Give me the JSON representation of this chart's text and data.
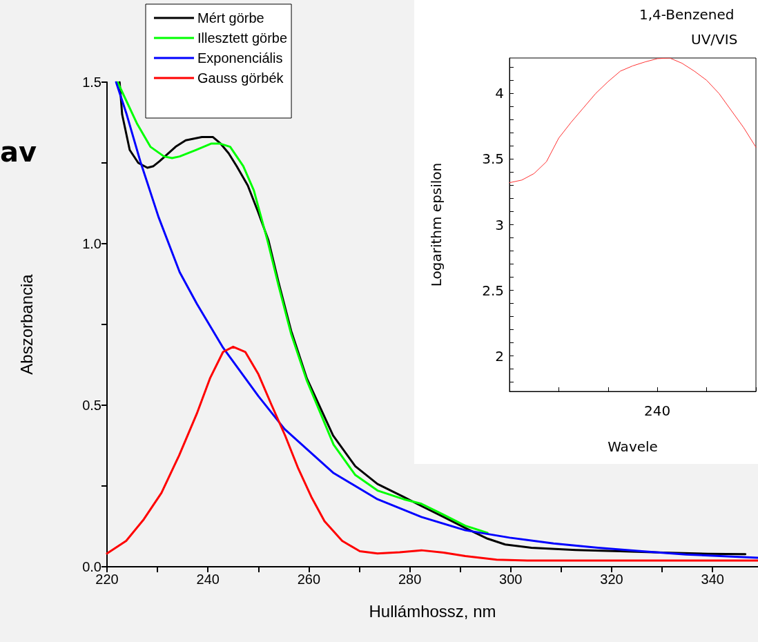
{
  "chart_data": [
    {
      "type": "line",
      "xlabel": "Hullámhossz, nm",
      "ylabel": "Abszorbancia",
      "annotations": [
        "av"
      ],
      "legend": "top",
      "marker": "none",
      "xlim": [
        220,
        349
      ],
      "xticks": [
        220,
        {
          "value": 230,
          "label": null
        },
        240,
        {
          "value": 250,
          "label": null
        },
        260,
        {
          "value": 270,
          "label": null
        },
        280,
        {
          "value": 290,
          "label": null
        },
        300,
        {
          "value": 310,
          "label": null
        },
        320,
        {
          "value": 330,
          "label": null
        },
        340
      ],
      "ylim": [
        0,
        1.5
      ],
      "yticks": [
        {
          "value": 0,
          "label": "0.0"
        },
        {
          "value": 0.25,
          "label": null
        },
        0.5,
        {
          "value": 0.75,
          "label": null
        },
        {
          "value": 1,
          "label": "1.0"
        },
        {
          "value": 1.25,
          "label": null
        },
        1.5
      ],
      "series": [
        {
          "name": "Mért görbe",
          "color": "#000000",
          "x": [
            222.5,
            223.0,
            224.5,
            226.2,
            228.0,
            229.2,
            230.4,
            233.6,
            235.6,
            238.8,
            241.0,
            242.5,
            244.1,
            245.7,
            247.9,
            249.9,
            252.0,
            254.0,
            256.5,
            259.6,
            264.8,
            269.2,
            273.6,
            278.8,
            282.3,
            286.7,
            291.0,
            295.4,
            298.9,
            304.1,
            312.9,
            321.6,
            330.3,
            339.1,
            346.5
          ],
          "values": [
            1.5,
            1.4,
            1.29,
            1.25,
            1.235,
            1.24,
            1.255,
            1.3,
            1.32,
            1.33,
            1.33,
            1.31,
            1.28,
            1.24,
            1.18,
            1.1,
            1.01,
            0.88,
            0.73,
            0.583,
            0.406,
            0.311,
            0.256,
            0.216,
            0.188,
            0.154,
            0.12,
            0.087,
            0.069,
            0.059,
            0.052,
            0.048,
            0.044,
            0.04,
            0.039
          ]
        },
        {
          "name": "Illesztett görbe",
          "color": "#00ff00",
          "x": [
            222.1,
            226.0,
            228.6,
            231.3,
            232.9,
            234.4,
            237.6,
            240.7,
            242.3,
            244.4,
            247.0,
            249.1,
            251.8,
            254.0,
            256.5,
            259.6,
            264.9,
            269.2,
            273.6,
            278.8,
            282.3,
            286.7,
            291.0,
            295.4
          ],
          "values": [
            1.5,
            1.37,
            1.3,
            1.27,
            1.265,
            1.27,
            1.29,
            1.31,
            1.31,
            1.3,
            1.24,
            1.165,
            1.01,
            0.87,
            0.72,
            0.576,
            0.378,
            0.284,
            0.236,
            0.209,
            0.195,
            0.161,
            0.127,
            0.105
          ]
        },
        {
          "name": "Exponenciális",
          "color": "#0000ff",
          "x": [
            221.8,
            223.9,
            226.6,
            230.2,
            234.4,
            237.8,
            243.0,
            250.0,
            255.2,
            264.9,
            273.6,
            282.3,
            291.0,
            299.8,
            308.5,
            317.3,
            326.0,
            334.7,
            349.0
          ],
          "values": [
            1.5,
            1.4,
            1.255,
            1.083,
            0.912,
            0.814,
            0.678,
            0.528,
            0.426,
            0.29,
            0.209,
            0.154,
            0.113,
            0.09,
            0.072,
            0.059,
            0.048,
            0.038,
            0.028
          ]
        },
        {
          "name": "Gauss görbék",
          "color": "#ff0000",
          "x": [
            220,
            223.8,
            227.3,
            230.8,
            234.3,
            237.8,
            240.4,
            243.0,
            245.0,
            247.4,
            250.0,
            252.6,
            255.3,
            257.9,
            260.5,
            263.1,
            266.6,
            270.1,
            273.6,
            278.0,
            282.3,
            286.7,
            291.0,
            297.2,
            304.1,
            349.0
          ],
          "values": [
            0.041,
            0.08,
            0.147,
            0.229,
            0.345,
            0.474,
            0.583,
            0.665,
            0.681,
            0.665,
            0.596,
            0.501,
            0.406,
            0.304,
            0.216,
            0.141,
            0.08,
            0.048,
            0.041,
            0.045,
            0.051,
            0.044,
            0.033,
            0.022,
            0.019,
            0.019
          ]
        }
      ]
    },
    {
      "type": "line",
      "title": "1,4-Benzened",
      "subtitle": "UV/VIS",
      "xlabel": "Wavele",
      "ylabel": "Logarithm epsilon",
      "marker": "none",
      "categories": [
        null,
        null,
        null,
        null,
        null,
        null,
        null,
        null,
        null,
        null,
        null,
        null,
        "240",
        null,
        null,
        null,
        null,
        null,
        null,
        null,
        null
      ],
      "ylim": [
        1.73,
        4.27
      ],
      "yticks": [
        {
          "value": 1.8,
          "label": null
        },
        {
          "value": 1.9,
          "label": null
        },
        2,
        {
          "value": 2.1,
          "label": null
        },
        {
          "value": 2.2,
          "label": null
        },
        {
          "value": 2.3,
          "label": null
        },
        {
          "value": 2.4,
          "label": null
        },
        2.5,
        {
          "value": 2.6,
          "label": null
        },
        {
          "value": 2.7,
          "label": null
        },
        {
          "value": 2.8,
          "label": null
        },
        {
          "value": 2.9,
          "label": null
        },
        3,
        {
          "value": 3.1,
          "label": null
        },
        {
          "value": 3.2,
          "label": null
        },
        {
          "value": 3.3,
          "label": null
        },
        {
          "value": 3.4,
          "label": null
        },
        3.5,
        {
          "value": 3.6,
          "label": null
        },
        {
          "value": 3.7,
          "label": null
        },
        {
          "value": 3.8,
          "label": null
        },
        {
          "value": 3.9,
          "label": null
        },
        4,
        {
          "value": 4.1,
          "label": null
        },
        {
          "value": 4.2,
          "label": null
        }
      ],
      "series": [
        {
          "color": "#ff3333",
          "values": [
            3.32,
            3.34,
            3.39,
            3.48,
            3.66,
            3.78,
            3.89,
            4.0,
            4.09,
            4.17,
            4.21,
            4.24,
            4.265,
            4.27,
            4.23,
            4.17,
            4.1,
            4.0,
            3.87,
            3.74,
            3.59
          ]
        }
      ]
    }
  ]
}
